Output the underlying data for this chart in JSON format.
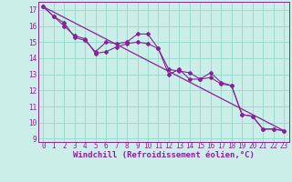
{
  "background_color": "#cceee8",
  "grid_color": "#99ddcc",
  "line_color": "#882299",
  "xlabel": "Windchill (Refroidissement éolien,°C)",
  "xlabel_fontsize": 6.5,
  "tick_fontsize": 5.5,
  "ylim": [
    8.8,
    17.5
  ],
  "xlim": [
    -0.5,
    23.5
  ],
  "yticks": [
    9,
    10,
    11,
    12,
    13,
    14,
    15,
    16,
    17
  ],
  "xticks": [
    0,
    1,
    2,
    3,
    4,
    5,
    6,
    7,
    8,
    9,
    10,
    11,
    12,
    13,
    14,
    15,
    16,
    17,
    18,
    19,
    20,
    21,
    22,
    23
  ],
  "series1_x": [
    0,
    1,
    2,
    3,
    4,
    5,
    6,
    7,
    8,
    9,
    10,
    11,
    12,
    13,
    14,
    15,
    16,
    17,
    18,
    19,
    20,
    21,
    22,
    23
  ],
  "series1_y": [
    17.2,
    16.6,
    16.2,
    15.3,
    15.1,
    14.4,
    15.0,
    14.9,
    15.0,
    15.5,
    15.5,
    14.6,
    13.3,
    13.2,
    13.1,
    12.7,
    13.1,
    12.5,
    12.3,
    10.5,
    10.4,
    9.6,
    9.6,
    9.5
  ],
  "series2_x": [
    0,
    1,
    2,
    3,
    4,
    5,
    6,
    7,
    8,
    9,
    10,
    11,
    12,
    13,
    14,
    15,
    16,
    17,
    18,
    19,
    20,
    21,
    22,
    23
  ],
  "series2_y": [
    17.2,
    16.6,
    16.0,
    15.4,
    15.2,
    14.3,
    14.4,
    14.7,
    14.9,
    15.0,
    14.9,
    14.6,
    13.0,
    13.3,
    12.7,
    12.7,
    12.8,
    12.4,
    12.3,
    10.5,
    10.4,
    9.6,
    9.6,
    9.5
  ],
  "series3_x": [
    0,
    23
  ],
  "series3_y": [
    17.2,
    9.5
  ]
}
